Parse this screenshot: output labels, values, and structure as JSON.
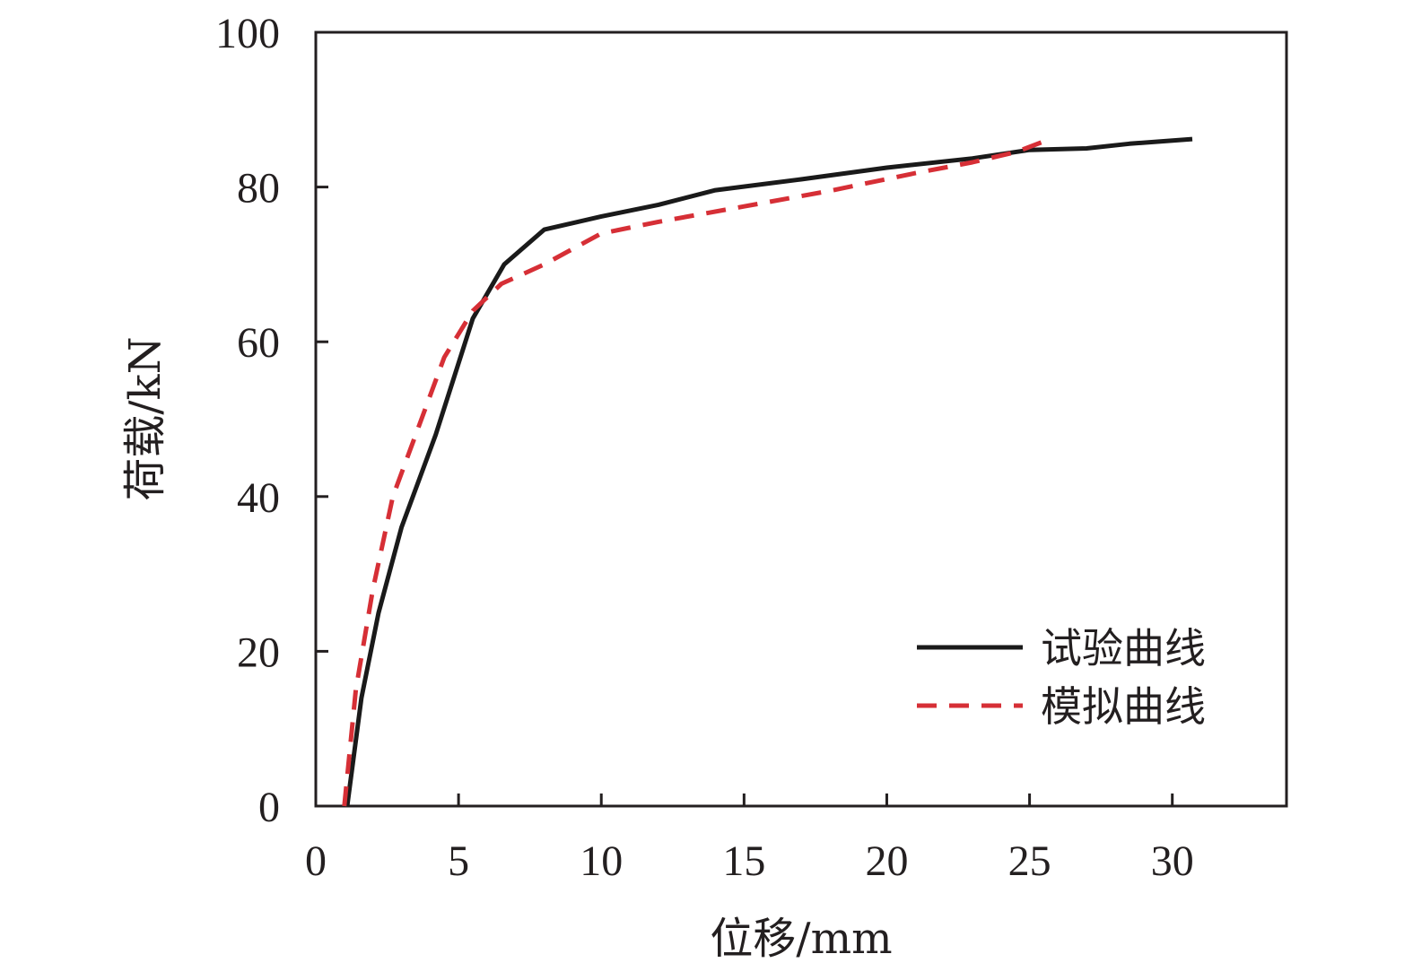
{
  "chart_data": {
    "type": "line",
    "title": "",
    "xlabel": "位移/mm",
    "ylabel": "荷载/kN",
    "xlim": [
      0,
      34
    ],
    "ylim": [
      0,
      100
    ],
    "xticks": [
      0,
      5,
      10,
      15,
      20,
      25,
      30
    ],
    "yticks": [
      0,
      20,
      40,
      60,
      80,
      100
    ],
    "grid": false,
    "legend_position": "bottom-right",
    "series": [
      {
        "name": "试验曲线",
        "color": "#1a1a1a",
        "style": "solid",
        "x": [
          1.1,
          1.6,
          2.2,
          3.0,
          4.2,
          5.5,
          6.6,
          8.0,
          10.0,
          12.0,
          14.0,
          17.0,
          20.0,
          23.0,
          25.0,
          27.0,
          28.5,
          30.7
        ],
        "y": [
          0,
          14,
          25,
          36,
          48,
          63,
          70,
          74.5,
          76.2,
          77.7,
          79.6,
          81.0,
          82.5,
          83.7,
          84.8,
          85.0,
          85.6,
          86.2
        ]
      },
      {
        "name": "模拟曲线",
        "color": "#d62f36",
        "style": "dashed",
        "x": [
          1.0,
          1.4,
          2.0,
          2.7,
          3.5,
          4.5,
          5.5,
          6.5,
          8.0,
          10.0,
          12.0,
          15.0,
          18.0,
          21.0,
          23.0,
          24.5,
          25.8
        ],
        "y": [
          0,
          15,
          28,
          40,
          48,
          58,
          64,
          67.5,
          70,
          74,
          75.5,
          77.5,
          79.5,
          81.8,
          83.2,
          84.5,
          86.3
        ]
      }
    ]
  }
}
